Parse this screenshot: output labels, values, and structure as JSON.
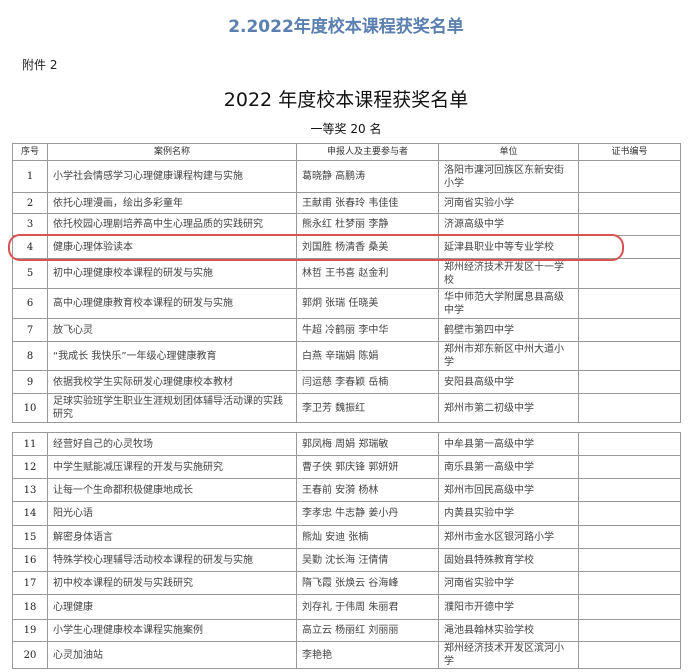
{
  "header": {
    "title": "2.2022年度校本课程获奖名单"
  },
  "document": {
    "attachment": "附件 2",
    "title": "2022 年度校本课程获奖名单",
    "award_level": "一等奖  20  名",
    "highlight_color": "#d9534f",
    "columns": [
      "序号",
      "案例名称",
      "申报人及主要参与者",
      "单位",
      "证书编号"
    ],
    "rows": [
      {
        "no": "1",
        "name": "小学社会情感学习心理健康课程构建与实施",
        "people": "葛晓静  高鹏涛",
        "unit": "洛阳市瀍河回族区东新安街小学",
        "cert": ""
      },
      {
        "no": "2",
        "name": "依托心理漫画，绘出多彩童年",
        "people": "王献甫  张春玲  韦佳佳",
        "unit": "河南省实验小学",
        "cert": ""
      },
      {
        "no": "3",
        "name": "依托校园心理剧培养高中生心理品质的实践研究",
        "people": "熊永红  杜梦丽  李静",
        "unit": "济源高级中学",
        "cert": ""
      },
      {
        "no": "4",
        "name": "健康心理体验读本",
        "people": "刘国胜  杨清香  桑美",
        "unit": "延津县职业中等专业学校",
        "cert": ""
      },
      {
        "no": "5",
        "name": "初中心理健康校本课程的研发与实施",
        "people": "林哲  王书喜  赵金利",
        "unit": "郑州经济技术开发区十一学校",
        "cert": ""
      },
      {
        "no": "6",
        "name": "高中心理健康教育校本课程的研发与实施",
        "people": "郭炯  张瑞  任晓美",
        "unit": "华中师范大学附属息县高级中学",
        "cert": ""
      },
      {
        "no": "7",
        "name": "放飞心灵",
        "people": "牛超  冷鹤丽  李中华",
        "unit": "鹤壁市第四中学",
        "cert": ""
      },
      {
        "no": "8",
        "name": "“我成长 我快乐”一年级心理健康教育",
        "people": "白燕  辛瑞娟  陈娟",
        "unit": "郑州市郑东新区中州大道小学",
        "cert": ""
      },
      {
        "no": "9",
        "name": "依据我校学生实际研发心理健康校本教材",
        "people": "闫运慈  李春颖  岳楠",
        "unit": "安阳县高级中学",
        "cert": ""
      },
      {
        "no": "10",
        "name": "足球实验班学生职业生涯规划团体辅导活动课的实践研究",
        "people": "李卫芳  魏振红",
        "unit": "郑州市第二初级中学",
        "cert": ""
      },
      {
        "no": "11",
        "name": "经营好自己的心灵牧场",
        "people": "郭凤梅  周娟  郑瑞敏",
        "unit": "中牟县第一高级中学",
        "cert": ""
      },
      {
        "no": "12",
        "name": "中学生赋能减压课程的开发与实施研究",
        "people": "曹子侠  郭庆锋  郭妍妍",
        "unit": "南乐县第一高级中学",
        "cert": ""
      },
      {
        "no": "13",
        "name": "让每一个生命都积极健康地成长",
        "people": "王春前  安漪  杨林",
        "unit": "郑州市回民高级中学",
        "cert": ""
      },
      {
        "no": "14",
        "name": "阳光心语",
        "people": "李孝忠  牛志静  姜小丹",
        "unit": "内黄县实验中学",
        "cert": ""
      },
      {
        "no": "15",
        "name": "解密身体语言",
        "people": "熊灿  安迪  张楠",
        "unit": "郑州市金水区银河路小学",
        "cert": ""
      },
      {
        "no": "16",
        "name": "特殊学校心理辅导活动校本课程的研发与实施",
        "people": "吴勤  沈长海  汪倩倩",
        "unit": "固始县特殊教育学校",
        "cert": ""
      },
      {
        "no": "17",
        "name": "初中校本课程的研发与实践研究",
        "people": "隋飞霞  张焕云  谷海峰",
        "unit": "河南省实验中学",
        "cert": ""
      },
      {
        "no": "18",
        "name": "心理健康",
        "people": "刘存礼  于伟周  朱丽君",
        "unit": "濮阳市开德中学",
        "cert": ""
      },
      {
        "no": "19",
        "name": "小学生心理健康校本课程实施案例",
        "people": "高立云  杨丽红  刘丽丽",
        "unit": "渑池县翰林实验学校",
        "cert": ""
      },
      {
        "no": "20",
        "name": "心灵加油站",
        "people": "李艳艳",
        "unit": "郑州经济技术开发区滨河小学",
        "cert": ""
      }
    ]
  }
}
